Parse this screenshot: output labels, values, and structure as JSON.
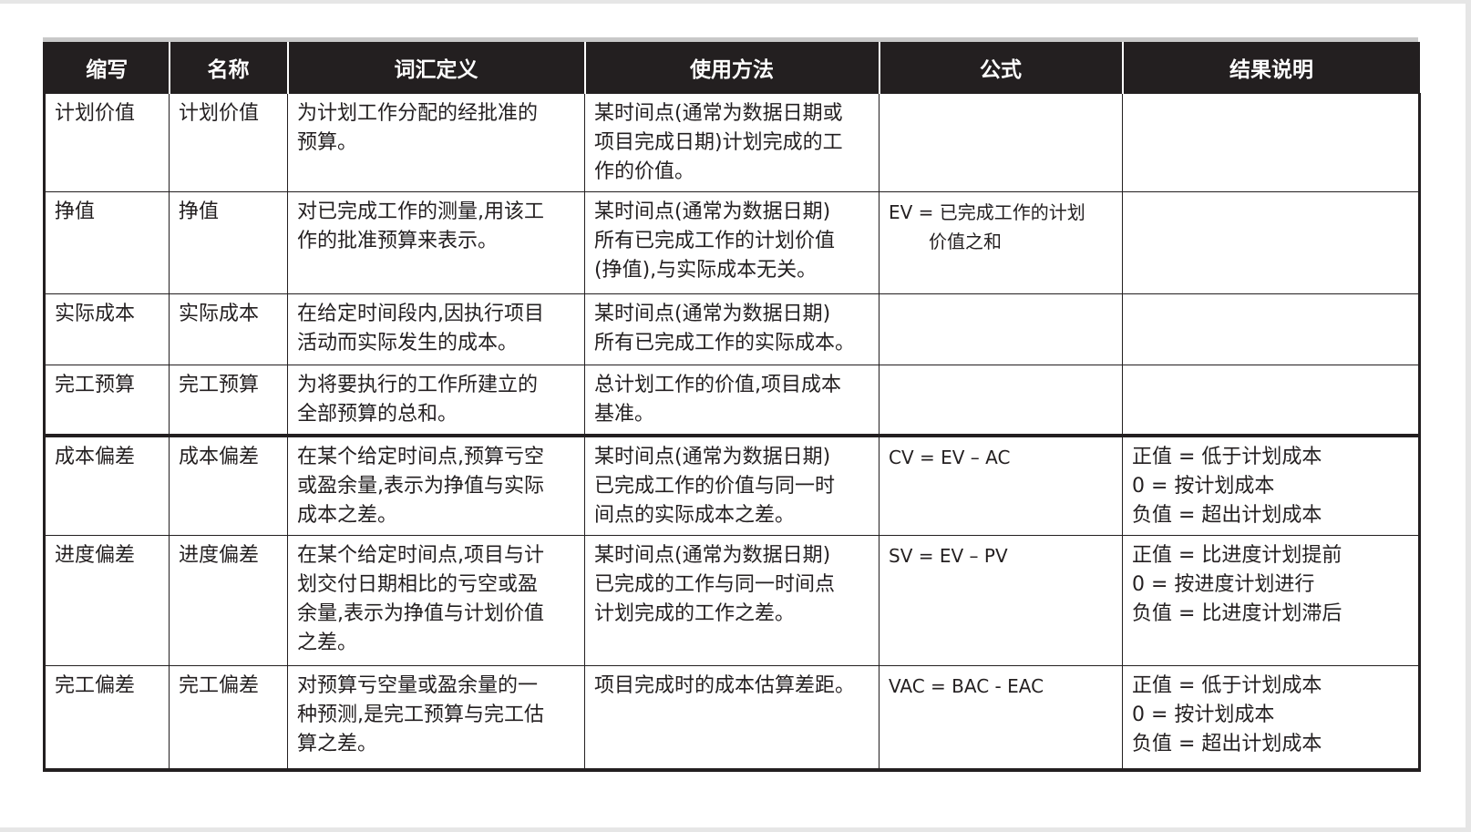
{
  "table": {
    "headers": [
      "缩写",
      "名称",
      "词汇定义",
      "使用方法",
      "公式",
      "结果说明"
    ],
    "rows": [
      {
        "abbr": "计划价值",
        "name": "计划价值",
        "definition": [
          "为计划工作分配的经批准的",
          "预算。"
        ],
        "usage": [
          "某时间点(通常为数据日期或",
          "项目完成日期)计划完成的工",
          "作的价值。"
        ],
        "formula": [],
        "result": []
      },
      {
        "abbr": "挣值",
        "name": "挣值",
        "definition": [
          "对已完成工作的测量,用该工",
          "作的批准预算来表示。"
        ],
        "usage": [
          "某时间点(通常为数据日期)",
          "所有已完成工作的计划价值",
          "(挣值),与实际成本无关。"
        ],
        "formula": [
          "EV = 已完成工作的计划",
          "价值之和"
        ],
        "result": []
      },
      {
        "abbr": "实际成本",
        "name": "实际成本",
        "definition": [
          "在给定时间段内,因执行项目",
          "活动而实际发生的成本。"
        ],
        "usage": [
          "某时间点(通常为数据日期)",
          "所有已完成工作的实际成本。"
        ],
        "formula": [],
        "result": []
      },
      {
        "abbr": "完工预算",
        "name": "完工预算",
        "definition": [
          "为将要执行的工作所建立的",
          "全部预算的总和。"
        ],
        "usage": [
          "总计划工作的价值,项目成本",
          "基准。"
        ],
        "formula": [],
        "result": []
      },
      {
        "abbr": "成本偏差",
        "name": "成本偏差",
        "definition": [
          "在某个给定时间点,预算亏空",
          "或盈余量,表示为挣值与实际",
          "成本之差。"
        ],
        "usage": [
          "某时间点(通常为数据日期)",
          "已完成工作的价值与同一时",
          "间点的实际成本之差。"
        ],
        "formula": [
          "CV = EV – AC"
        ],
        "result": [
          "正值 = 低于计划成本",
          "0 = 按计划成本",
          "负值 = 超出计划成本"
        ]
      },
      {
        "abbr": "进度偏差",
        "name": "进度偏差",
        "definition": [
          "在某个给定时间点,项目与计",
          "划交付日期相比的亏空或盈",
          "余量,表示为挣值与计划价值",
          "之差。"
        ],
        "usage": [
          "某时间点(通常为数据日期)",
          "已完成的工作与同一时间点",
          "计划完成的工作之差。"
        ],
        "formula": [
          "SV = EV – PV"
        ],
        "result": [
          "正值 = 比进度计划提前",
          "0 = 按进度计划进行",
          "负值 = 比进度计划滞后"
        ]
      },
      {
        "abbr": "完工偏差",
        "name": "完工偏差",
        "definition": [
          "对预算亏空量或盈余量的一",
          "种预测,是完工预算与完工估",
          "算之差。"
        ],
        "usage": [
          "项目完成时的成本估算差距。"
        ],
        "formula": [
          "VAC = BAC - EAC"
        ],
        "result": [
          "正值 = 低于计划成本",
          "0 = 按计划成本",
          "负值 = 超出计划成本"
        ]
      }
    ]
  }
}
